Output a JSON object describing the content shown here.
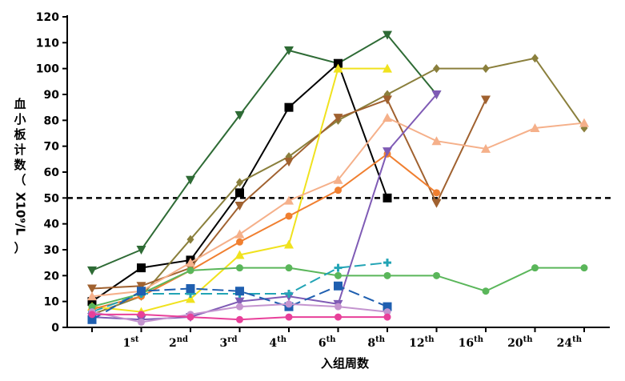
{
  "chart_data": {
    "type": "line",
    "title": "",
    "xlabel": "入组周数",
    "ylabel_chars": [
      "血",
      "小",
      "板",
      "计",
      "数",
      "（",
      "X10⁹/L",
      "）"
    ],
    "x_ticks": [
      {
        "base": "",
        "sup": ""
      },
      {
        "base": "1",
        "sup": "st"
      },
      {
        "base": "2",
        "sup": "nd"
      },
      {
        "base": "3",
        "sup": "rd"
      },
      {
        "base": "4",
        "sup": "th"
      },
      {
        "base": "6",
        "sup": "th"
      },
      {
        "base": "8",
        "sup": "th"
      },
      {
        "base": "12",
        "sup": "th"
      },
      {
        "base": "16",
        "sup": "th"
      },
      {
        "base": "20",
        "sup": "th"
      },
      {
        "base": "24",
        "sup": "th"
      }
    ],
    "y_ticks": [
      0,
      10,
      20,
      30,
      40,
      50,
      60,
      70,
      80,
      90,
      100,
      110,
      120
    ],
    "ylim": [
      0,
      120
    ],
    "reference_line": {
      "y": 50,
      "style": "dashed"
    },
    "grid": false,
    "series": [
      {
        "color": "#2e6b35",
        "marker": "tri-down",
        "x": [
          0,
          1,
          2,
          3,
          4,
          5,
          6,
          7
        ],
        "values": [
          22,
          30,
          57,
          82,
          107,
          102,
          113,
          90
        ]
      },
      {
        "color": "#000000",
        "marker": "square",
        "x": [
          0,
          1,
          2,
          3,
          4,
          5,
          6
        ],
        "values": [
          10,
          23,
          26,
          52,
          85,
          102,
          50
        ]
      },
      {
        "color": "#8a7f3c",
        "marker": "diamond",
        "x": [
          0,
          1,
          2,
          3,
          4,
          5,
          6,
          7,
          8,
          9,
          10
        ],
        "values": [
          5,
          12,
          34,
          56,
          66,
          80,
          90,
          100,
          100,
          104,
          77
        ]
      },
      {
        "color": "#a0612f",
        "marker": "tri-down",
        "x": [
          0,
          1,
          2,
          3,
          4,
          5,
          6,
          7,
          8
        ],
        "values": [
          15,
          16,
          23,
          47,
          64,
          81,
          88,
          48,
          88
        ]
      },
      {
        "color": "#f0e21e",
        "marker": "tri-up",
        "x": [
          0,
          1,
          2,
          3,
          4,
          5,
          6
        ],
        "values": [
          8,
          6,
          11,
          28,
          32,
          100,
          100
        ]
      },
      {
        "color": "#f5b08a",
        "marker": "tri-up",
        "x": [
          0,
          1,
          2,
          3,
          4,
          5,
          6,
          7,
          8,
          9,
          10
        ],
        "values": [
          12,
          14,
          25,
          36,
          49,
          57,
          81,
          72,
          69,
          77,
          79
        ]
      },
      {
        "color": "#f07f30",
        "marker": "circle",
        "x": [
          0,
          1,
          2,
          3,
          4,
          5,
          6,
          7
        ],
        "values": [
          7,
          12,
          22,
          33,
          43,
          53,
          67,
          52
        ]
      },
      {
        "color": "#7f5bb5",
        "marker": "tri-down",
        "x": [
          0,
          1,
          2,
          3,
          4,
          5,
          6,
          7
        ],
        "values": [
          4,
          3,
          4,
          10,
          12,
          9,
          68,
          90
        ]
      },
      {
        "color": "#5ab65a",
        "marker": "circle",
        "x": [
          0,
          1,
          2,
          3,
          4,
          5,
          6,
          7,
          8,
          9,
          10
        ],
        "values": [
          8,
          13,
          22,
          23,
          23,
          20,
          20,
          20,
          14,
          23,
          23
        ]
      },
      {
        "color": "#22a4b5",
        "marker": "plus",
        "dashed": true,
        "x": [
          0,
          1,
          2,
          3,
          4,
          5,
          6
        ],
        "values": [
          6,
          13,
          13,
          13,
          13,
          23,
          25
        ]
      },
      {
        "color": "#1f5fb0",
        "marker": "square",
        "dashed": true,
        "x": [
          0,
          1,
          2,
          3,
          4,
          5,
          6
        ],
        "values": [
          3,
          14,
          15,
          14,
          8,
          16,
          8
        ]
      },
      {
        "color": "#c494cf",
        "marker": "circle",
        "x": [
          0,
          1,
          2,
          3,
          4,
          5,
          6
        ],
        "values": [
          6,
          2,
          5,
          8,
          9,
          8,
          6
        ]
      },
      {
        "color": "#e8409a",
        "marker": "circle",
        "x": [
          0,
          1,
          2,
          3,
          4,
          5,
          6
        ],
        "values": [
          5,
          5,
          4,
          3,
          4,
          4,
          4
        ]
      }
    ]
  }
}
